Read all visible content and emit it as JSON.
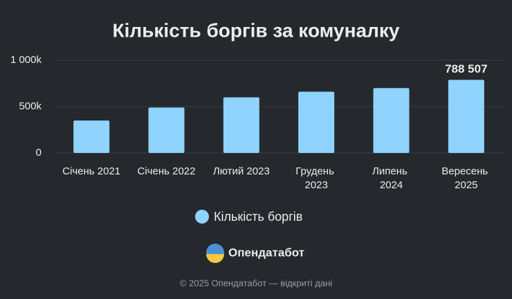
{
  "chart_data": {
    "type": "bar",
    "title": "Кількість боргів за комуналку",
    "categories": [
      "Січень 2021",
      "Січень 2022",
      "Лютий 2023",
      "Грудень 2023",
      "Липень 2024",
      "Вересень 2025"
    ],
    "series": [
      {
        "name": "Кількість боргів",
        "color": "#8fd3fe",
        "values": [
          350000,
          490000,
          600000,
          660000,
          700000,
          788507
        ],
        "value_labels": [
          null,
          null,
          null,
          null,
          null,
          "788 507"
        ]
      }
    ],
    "ylim": [
      0,
      1000000
    ],
    "yticks": [
      0,
      {
        "value": 500000,
        "label": "500k"
      },
      {
        "value": 1000000,
        "label": "1 000k"
      }
    ],
    "grid": true,
    "legend": "bottom"
  },
  "footer": {
    "brand": "Опендатабот",
    "copyright": "© 2025 Опендатабот — відкриті дані"
  }
}
